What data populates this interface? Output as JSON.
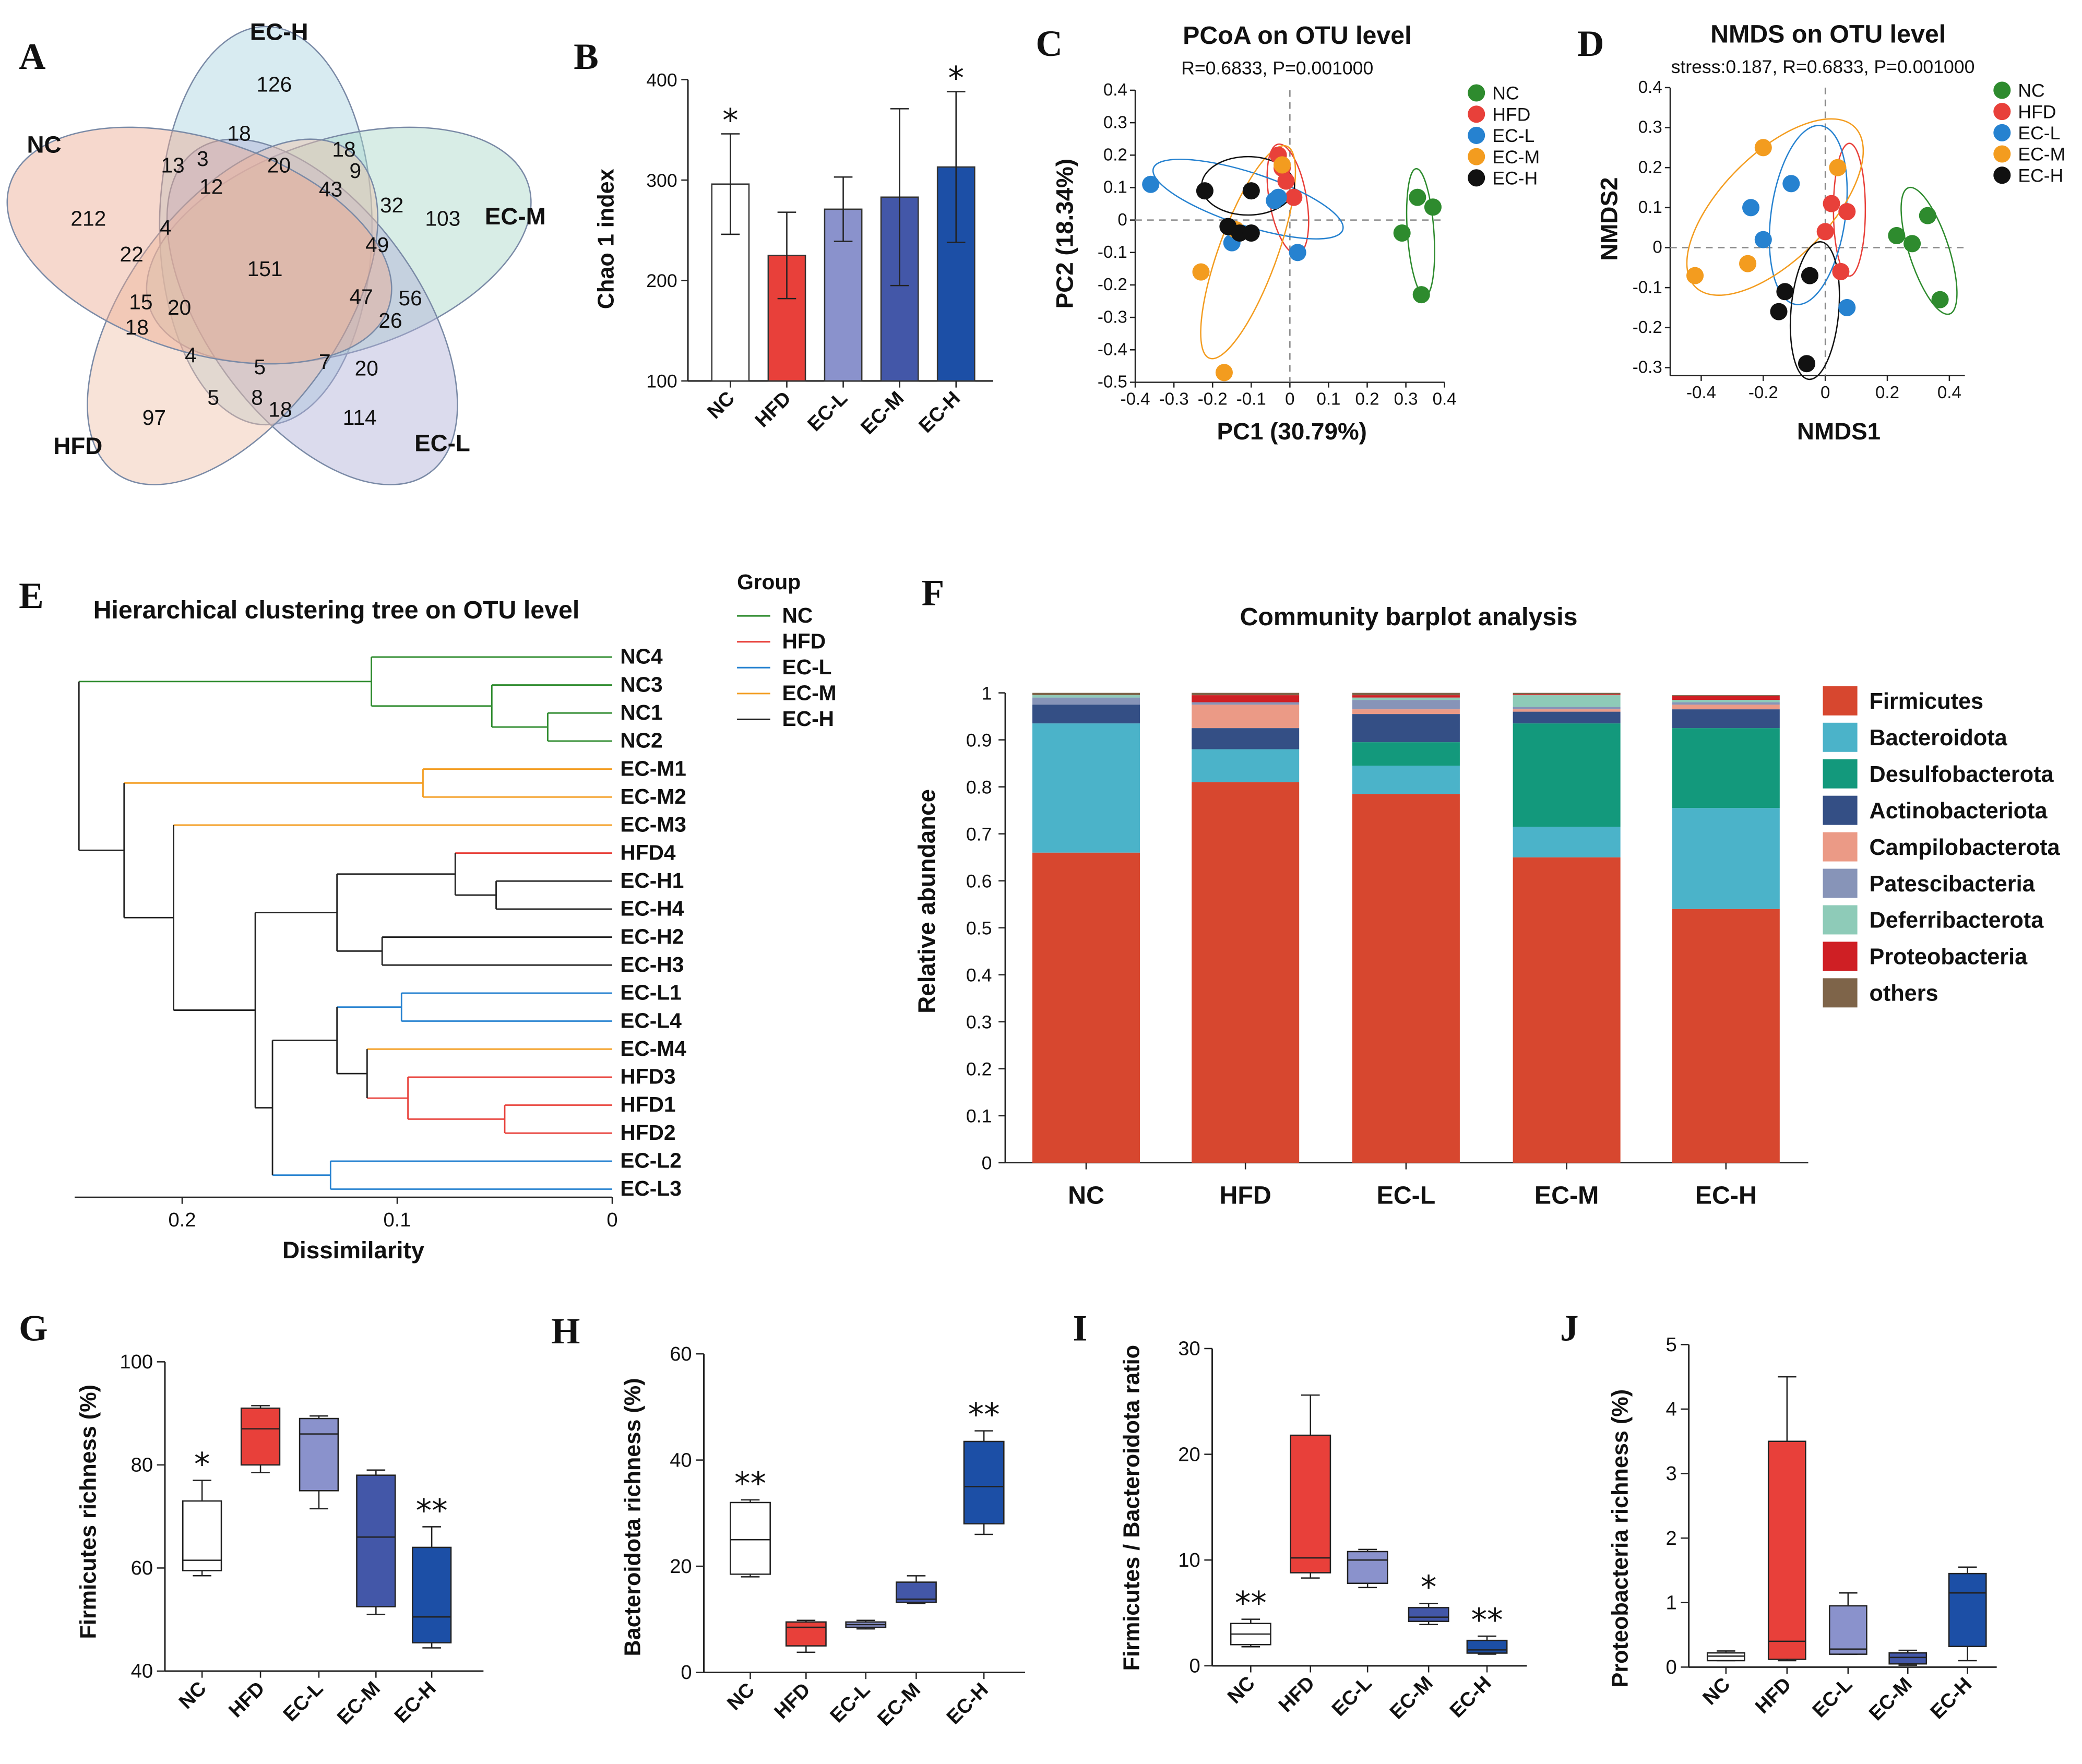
{
  "panel_labels": {
    "A": "A",
    "B": "B",
    "C": "C",
    "D": "D",
    "E": "E",
    "F": "F",
    "G": "G",
    "H": "H",
    "I": "I",
    "J": "J"
  },
  "colors": {
    "NC": "#2e8b2e",
    "HFD": "#e8403a",
    "EC-L": "#2682d0",
    "EC-M": "#f39c1f",
    "EC-H": "#111111",
    "bar_NC": "#ffffff",
    "bar_HFD": "#e8403a",
    "bar_ECL": "#8a92cc",
    "bar_ECM": "#4357a8",
    "bar_ECH": "#1c4fa6"
  },
  "chart_data": [
    {
      "id": "A",
      "type": "venn",
      "sets": [
        "NC",
        "HFD",
        "EC-L",
        "EC-M",
        "EC-H"
      ],
      "counts": [
        "126",
        "18",
        "18",
        "20",
        "13",
        "3",
        "12",
        "43",
        "9",
        "212",
        "32",
        "103",
        "4",
        "49",
        "22",
        "151",
        "15",
        "20",
        "47",
        "56",
        "18",
        "26",
        "4",
        "5",
        "7",
        "20",
        "97",
        "5",
        "8",
        "18",
        "114"
      ]
    },
    {
      "id": "B",
      "type": "bar",
      "categories": [
        "NC",
        "HFD",
        "EC-L",
        "EC-M",
        "EC-H"
      ],
      "values": [
        296,
        225,
        271,
        283,
        313
      ],
      "err": [
        50,
        43,
        32,
        88,
        75
      ],
      "ylabel": "Chao 1 index",
      "ylim": [
        100,
        400
      ],
      "yticks": [
        "100",
        "200",
        "300",
        "400"
      ],
      "annotations": [
        {
          "index": 0,
          "text": "*"
        },
        {
          "index": 4,
          "text": "*"
        }
      ]
    },
    {
      "id": "C",
      "type": "scatter",
      "title": "PCoA on OTU level",
      "subtitle": "R=0.6833, P=0.001000",
      "xlabel": "PC1 (30.79%)",
      "ylabel": "PC2 (18.34%)",
      "xlim": [
        -0.4,
        0.4
      ],
      "ylim": [
        -0.5,
        0.4
      ],
      "xticks": [
        "-0.4",
        "-0.3",
        "-0.2",
        "-0.1",
        "0",
        "0.1",
        "0.2",
        "0.3",
        "0.4"
      ],
      "yticks": [
        "-0.5",
        "-0.4",
        "-0.3",
        "-0.2",
        "-0.1",
        "0",
        "0.1",
        "0.2",
        "0.3",
        "0.4"
      ],
      "legend": [
        "NC",
        "HFD",
        "EC-L",
        "EC-M",
        "EC-H"
      ],
      "series": [
        {
          "name": "NC",
          "points": [
            [
              0.33,
              0.07
            ],
            [
              0.37,
              0.04
            ],
            [
              0.29,
              -0.04
            ],
            [
              0.34,
              -0.23
            ]
          ]
        },
        {
          "name": "HFD",
          "points": [
            [
              -0.03,
              0.2
            ],
            [
              -0.02,
              0.16
            ],
            [
              -0.01,
              0.12
            ],
            [
              0.01,
              0.07
            ]
          ]
        },
        {
          "name": "EC-L",
          "points": [
            [
              -0.36,
              0.11
            ],
            [
              -0.04,
              0.06
            ],
            [
              -0.03,
              0.07
            ],
            [
              -0.15,
              -0.07
            ],
            [
              0.02,
              -0.1
            ]
          ]
        },
        {
          "name": "EC-M",
          "points": [
            [
              -0.02,
              0.17
            ],
            [
              -0.14,
              -0.03
            ],
            [
              -0.23,
              -0.16
            ],
            [
              -0.17,
              -0.47
            ]
          ]
        },
        {
          "name": "EC-H",
          "points": [
            [
              -0.22,
              0.09
            ],
            [
              -0.1,
              0.09
            ],
            [
              -0.16,
              -0.02
            ],
            [
              -0.13,
              -0.04
            ],
            [
              -0.1,
              -0.04
            ]
          ]
        }
      ]
    },
    {
      "id": "D",
      "type": "scatter",
      "title": "NMDS on OTU level",
      "subtitle": "stress:0.187, R=0.6833, P=0.001000",
      "xlabel": "NMDS1",
      "ylabel": "NMDS2",
      "xlim": [
        -0.5,
        0.45
      ],
      "ylim": [
        -0.32,
        0.4
      ],
      "xticks": [
        "-0.4",
        "-0.2",
        "0",
        "0.2",
        "0.4"
      ],
      "yticks": [
        "-0.3",
        "-0.2",
        "-0.1",
        "0",
        "0.1",
        "0.2",
        "0.3",
        "0.4"
      ],
      "legend": [
        "NC",
        "HFD",
        "EC-L",
        "EC-M",
        "EC-H"
      ],
      "series": [
        {
          "name": "NC",
          "points": [
            [
              0.33,
              0.08
            ],
            [
              0.23,
              0.03
            ],
            [
              0.28,
              0.01
            ],
            [
              0.37,
              -0.13
            ]
          ]
        },
        {
          "name": "HFD",
          "points": [
            [
              0.02,
              0.11
            ],
            [
              0.07,
              0.09
            ],
            [
              0.0,
              0.04
            ],
            [
              0.05,
              -0.06
            ]
          ]
        },
        {
          "name": "EC-L",
          "points": [
            [
              -0.11,
              0.16
            ],
            [
              -0.24,
              0.1
            ],
            [
              -0.2,
              0.02
            ],
            [
              0.07,
              -0.15
            ]
          ]
        },
        {
          "name": "EC-M",
          "points": [
            [
              -0.2,
              0.25
            ],
            [
              0.04,
              0.2
            ],
            [
              -0.25,
              -0.04
            ],
            [
              -0.42,
              -0.07
            ]
          ]
        },
        {
          "name": "EC-H",
          "points": [
            [
              -0.13,
              -0.11
            ],
            [
              -0.05,
              -0.07
            ],
            [
              -0.15,
              -0.16
            ],
            [
              -0.06,
              -0.29
            ]
          ]
        }
      ]
    },
    {
      "id": "E",
      "type": "dendrogram",
      "title": "Hierarchical clustering tree on OTU level",
      "xlabel": "Dissimilarity",
      "xticks": [
        "0.2",
        "0.1",
        "0"
      ],
      "legend_title": "Group",
      "legend": [
        "NC",
        "HFD",
        "EC-L",
        "EC-M",
        "EC-H"
      ],
      "leaves": [
        {
          "name": "NC4",
          "group": "NC"
        },
        {
          "name": "NC3",
          "group": "NC"
        },
        {
          "name": "NC1",
          "group": "NC"
        },
        {
          "name": "NC2",
          "group": "NC"
        },
        {
          "name": "EC-M1",
          "group": "EC-M"
        },
        {
          "name": "EC-M2",
          "group": "EC-M"
        },
        {
          "name": "EC-M3",
          "group": "EC-M"
        },
        {
          "name": "HFD4",
          "group": "HFD"
        },
        {
          "name": "EC-H1",
          "group": "EC-H"
        },
        {
          "name": "EC-H4",
          "group": "EC-H"
        },
        {
          "name": "EC-H2",
          "group": "EC-H"
        },
        {
          "name": "EC-H3",
          "group": "EC-H"
        },
        {
          "name": "EC-L1",
          "group": "EC-L"
        },
        {
          "name": "EC-L4",
          "group": "EC-L"
        },
        {
          "name": "EC-M4",
          "group": "EC-M"
        },
        {
          "name": "HFD3",
          "group": "HFD"
        },
        {
          "name": "HFD1",
          "group": "HFD"
        },
        {
          "name": "HFD2",
          "group": "HFD"
        },
        {
          "name": "EC-L2",
          "group": "EC-L"
        },
        {
          "name": "EC-L3",
          "group": "EC-L"
        }
      ]
    },
    {
      "id": "F",
      "type": "stacked_bar",
      "title": "Community barplot analysis",
      "ylabel": "Relative abundance",
      "categories": [
        "NC",
        "HFD",
        "EC-L",
        "EC-M",
        "EC-H"
      ],
      "ylim": [
        0,
        1
      ],
      "yticks": [
        "0",
        "0.1",
        "0.2",
        "0.3",
        "0.4",
        "0.5",
        "0.6",
        "0.7",
        "0.8",
        "0.9",
        "1"
      ],
      "series": [
        {
          "name": "Firmicutes",
          "color": "#d7472f",
          "values": [
            0.66,
            0.81,
            0.785,
            0.65,
            0.54
          ]
        },
        {
          "name": "Bacteroidota",
          "color": "#4bb3c9",
          "values": [
            0.275,
            0.07,
            0.06,
            0.065,
            0.215
          ]
        },
        {
          "name": "Desulfobacterota",
          "color": "#13997c",
          "values": [
            0.0,
            0.0,
            0.05,
            0.22,
            0.17
          ]
        },
        {
          "name": "Actinobacteriota",
          "color": "#344f85",
          "values": [
            0.04,
            0.045,
            0.06,
            0.025,
            0.04
          ]
        },
        {
          "name": "Campilobacterota",
          "color": "#eb9a86",
          "values": [
            0.0,
            0.05,
            0.01,
            0.005,
            0.01
          ]
        },
        {
          "name": "Patescibacteria",
          "color": "#8794b8",
          "values": [
            0.015,
            0.005,
            0.02,
            0.005,
            0.005
          ]
        },
        {
          "name": "Deferribacterota",
          "color": "#8ecbb8",
          "values": [
            0.005,
            0.0,
            0.005,
            0.025,
            0.005
          ]
        },
        {
          "name": "Proteobacteria",
          "color": "#cf1f24",
          "values": [
            0.0,
            0.015,
            0.005,
            0.002,
            0.008
          ]
        },
        {
          "name": "others",
          "color": "#7e6449",
          "values": [
            0.005,
            0.005,
            0.005,
            0.003,
            0.002
          ]
        }
      ]
    },
    {
      "id": "G",
      "type": "box",
      "ylabel": "Firmicutes richness (%)",
      "categories": [
        "NC",
        "HFD",
        "EC-L",
        "EC-M",
        "EC-H"
      ],
      "ylim": [
        40,
        100
      ],
      "yticks": [
        "40",
        "60",
        "80",
        "100"
      ],
      "boxes": [
        {
          "min": 58.5,
          "q1": 59.5,
          "median": 61.5,
          "q3": 73,
          "max": 77
        },
        {
          "min": 78.5,
          "q1": 80,
          "median": 87,
          "q3": 91,
          "max": 91.5
        },
        {
          "min": 71.5,
          "q1": 75,
          "median": 86,
          "q3": 89,
          "max": 89.5
        },
        {
          "min": 51,
          "q1": 52.5,
          "median": 66,
          "q3": 78,
          "max": 79
        },
        {
          "min": 44.5,
          "q1": 45.5,
          "median": 50.5,
          "q3": 64,
          "max": 68
        }
      ],
      "annotations": [
        {
          "index": 0,
          "text": "*"
        },
        {
          "index": 4,
          "text": "**"
        }
      ]
    },
    {
      "id": "H",
      "type": "box",
      "ylabel": "Bacteroidota richness (%)",
      "categories": [
        "NC",
        "HFD",
        "EC-L",
        "EC-M",
        "EC-H"
      ],
      "ylim": [
        0,
        60
      ],
      "yticks": [
        "0",
        "20",
        "40",
        "60"
      ],
      "boxes": [
        {
          "min": 18,
          "q1": 18.5,
          "median": 25,
          "q3": 32,
          "max": 32.5
        },
        {
          "min": 3.8,
          "q1": 5,
          "median": 8.5,
          "q3": 9.5,
          "max": 9.8
        },
        {
          "min": 8.2,
          "q1": 8.5,
          "median": 9,
          "q3": 9.5,
          "max": 9.8
        },
        {
          "min": 13,
          "q1": 13.2,
          "median": 13.8,
          "q3": 17,
          "max": 18.2
        },
        {
          "min": 26,
          "q1": 28,
          "median": 35,
          "q3": 43.5,
          "max": 45.5
        }
      ],
      "annotations": [
        {
          "index": 0,
          "text": "**"
        },
        {
          "index": 4,
          "text": "**"
        }
      ]
    },
    {
      "id": "I",
      "type": "box",
      "ylabel": "Firmicutes / Bacteroidota ratio",
      "categories": [
        "NC",
        "HFD",
        "EC-L",
        "EC-M",
        "EC-H"
      ],
      "ylim": [
        0,
        30
      ],
      "yticks": [
        "0",
        "10",
        "20",
        "30"
      ],
      "boxes": [
        {
          "min": 1.8,
          "q1": 2,
          "median": 3,
          "q3": 4,
          "max": 4.4
        },
        {
          "min": 8.3,
          "q1": 8.8,
          "median": 10.2,
          "q3": 21.8,
          "max": 25.6
        },
        {
          "min": 7.4,
          "q1": 7.8,
          "median": 10,
          "q3": 10.8,
          "max": 11
        },
        {
          "min": 3.9,
          "q1": 4.2,
          "median": 4.6,
          "q3": 5.5,
          "max": 5.9
        },
        {
          "min": 1.1,
          "q1": 1.2,
          "median": 1.5,
          "q3": 2.4,
          "max": 2.8
        }
      ],
      "annotations": [
        {
          "index": 0,
          "text": "**"
        },
        {
          "index": 3,
          "text": "*"
        },
        {
          "index": 4,
          "text": "**"
        }
      ]
    },
    {
      "id": "J",
      "type": "box",
      "ylabel": "Proteobacteria richness (%)",
      "categories": [
        "NC",
        "HFD",
        "EC-L",
        "EC-M",
        "EC-H"
      ],
      "ylim": [
        0,
        5
      ],
      "yticks": [
        "0",
        "1",
        "2",
        "3",
        "4",
        "5"
      ],
      "boxes": [
        {
          "min": 0.1,
          "q1": 0.1,
          "median": 0.17,
          "q3": 0.22,
          "max": 0.25
        },
        {
          "min": 0.1,
          "q1": 0.12,
          "median": 0.4,
          "q3": 3.5,
          "max": 4.5
        },
        {
          "min": 0.2,
          "q1": 0.2,
          "median": 0.28,
          "q3": 0.95,
          "max": 1.15
        },
        {
          "min": 0.03,
          "q1": 0.05,
          "median": 0.15,
          "q3": 0.22,
          "max": 0.26
        },
        {
          "min": 0.1,
          "q1": 0.32,
          "median": 1.15,
          "q3": 1.45,
          "max": 1.55
        }
      ],
      "annotations": []
    }
  ]
}
